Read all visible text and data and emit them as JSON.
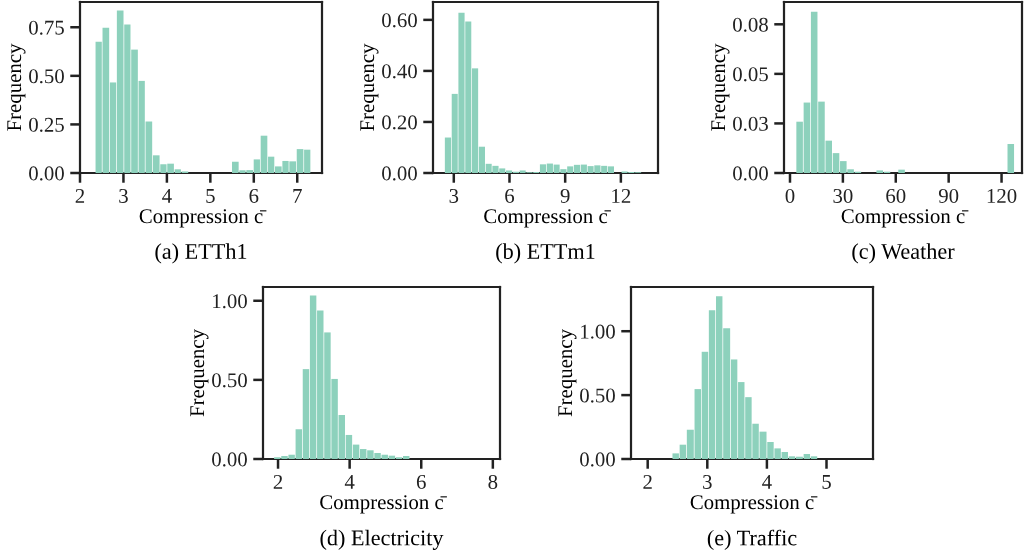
{
  "chart_data": [
    {
      "type": "histogram",
      "title": "(a) ETTh1",
      "xlabel": "Compression c̄",
      "ylabel": "Frequency",
      "color": "#8dd1bc",
      "bins": [
        2.35,
        2.51,
        2.68,
        2.84,
        3.01,
        3.17,
        3.34,
        3.5,
        3.67,
        3.84,
        4.0,
        4.17,
        4.33,
        4.5,
        4.66,
        4.83,
        4.99,
        5.16,
        5.32,
        5.49,
        5.66,
        5.82,
        5.99,
        6.15,
        6.32,
        6.48,
        6.65,
        6.81,
        6.98,
        7.15,
        7.31
      ],
      "values": [
        0.675,
        0.747,
        0.466,
        0.836,
        0.764,
        0.635,
        0.474,
        0.265,
        0.091,
        0.045,
        0.048,
        0.019,
        0.008,
        0,
        0,
        0,
        0,
        0,
        0,
        0.058,
        0.014,
        0.015,
        0.07,
        0.192,
        0.084,
        0.034,
        0.062,
        0.06,
        0.123,
        0.12
      ],
      "xlim": [
        2.0,
        7.57
      ],
      "ylim": [
        0,
        0.88
      ],
      "xticks": [
        2,
        3,
        4,
        5,
        6,
        7
      ],
      "yticks": [
        {
          "value": 0,
          "label": "0.00"
        },
        {
          "value": 0.25,
          "label": "0.25"
        },
        {
          "value": 0.5,
          "label": "0.50"
        },
        {
          "value": 0.75,
          "label": "0.75"
        }
      ],
      "grid": false
    },
    {
      "type": "histogram",
      "title": "(b) ETTm1",
      "xlabel": "Compression c̄",
      "ylabel": "Frequency",
      "color": "#8dd1bc",
      "bins": [
        2.5,
        2.87,
        3.23,
        3.6,
        3.96,
        4.33,
        4.7,
        5.06,
        5.43,
        5.79,
        6.16,
        6.53,
        6.89,
        7.26,
        7.62,
        7.99,
        8.36,
        8.72,
        9.09,
        9.45,
        9.82,
        10.19,
        10.55,
        10.92,
        11.28,
        11.65,
        12.02,
        12.38,
        12.75,
        13.11,
        13.48
      ],
      "values": [
        0.139,
        0.31,
        0.628,
        0.594,
        0.41,
        0.103,
        0.036,
        0.028,
        0.018,
        0.01,
        0.005,
        0.01,
        0.003,
        0.004,
        0.034,
        0.037,
        0.033,
        0.015,
        0.026,
        0.032,
        0.033,
        0.027,
        0.03,
        0.028,
        0.026,
        0,
        0.006,
        0.004,
        0.003,
        0
      ],
      "xlim": [
        1.88,
        14.0
      ],
      "ylim": [
        0,
        0.67
      ],
      "xticks": [
        3,
        6,
        9,
        12
      ],
      "yticks": [
        {
          "value": 0,
          "label": "0.00"
        },
        {
          "value": 0.2,
          "label": "0.20"
        },
        {
          "value": 0.4,
          "label": "0.40"
        },
        {
          "value": 0.6,
          "label": "0.60"
        }
      ],
      "grid": false
    },
    {
      "type": "histogram",
      "title": "(c) Weather",
      "xlabel": "Compression c̄",
      "ylabel": "Frequency",
      "color": "#8dd1bc",
      "bins": [
        3.4,
        7.53,
        11.66,
        15.79,
        19.92,
        24.05,
        28.18,
        32.31,
        36.44,
        40.57,
        44.7,
        48.83,
        52.96,
        57.09,
        61.22,
        65.35,
        69.48,
        73.61,
        77.74,
        81.87,
        86.0,
        90.13,
        94.26,
        98.39,
        102.52,
        106.65,
        110.78,
        114.91,
        119.04,
        123.17,
        127.3
      ],
      "values": [
        0.0276,
        0.0379,
        0.0868,
        0.0384,
        0.0174,
        0.0107,
        0.0064,
        0.002,
        0.0007,
        0,
        0,
        0.0014,
        0.0007,
        0,
        0.0018,
        0,
        0,
        0,
        0,
        0,
        0,
        0,
        0,
        0,
        0,
        0,
        0,
        0,
        0,
        0.0156
      ],
      "xlim": [
        -3.4,
        131.6
      ],
      "ylim": [
        0,
        0.092
      ],
      "xticks": [
        0,
        30,
        60,
        90,
        120
      ],
      "yticks": [
        {
          "value": 0,
          "label": "0.00"
        },
        {
          "value": 0.02667,
          "label": "0.03"
        },
        {
          "value": 0.05333,
          "label": "0.05"
        },
        {
          "value": 0.08,
          "label": "0.08"
        }
      ],
      "grid": false
    },
    {
      "type": "histogram",
      "title": "(d) Electricity",
      "xlabel": "Compression c̄",
      "ylabel": "Frequency",
      "color": "#8dd1bc",
      "bins": [
        1.88,
        2.08,
        2.28,
        2.48,
        2.68,
        2.88,
        3.08,
        3.28,
        3.48,
        3.68,
        3.88,
        4.08,
        4.28,
        4.48,
        4.68,
        4.88,
        5.08,
        5.28,
        5.48,
        5.68,
        5.88,
        6.08,
        6.28,
        6.48,
        6.68,
        6.88,
        7.08,
        7.28,
        7.48,
        7.68,
        7.88
      ],
      "values": [
        0.011,
        0.019,
        0.027,
        0.188,
        0.568,
        1.034,
        0.939,
        0.8,
        0.506,
        0.278,
        0.152,
        0.091,
        0.063,
        0.055,
        0.038,
        0.027,
        0.021,
        0.011,
        0.019,
        0,
        0,
        0,
        0,
        0,
        0,
        0,
        0,
        0,
        0,
        0
      ],
      "xlim": [
        1.58,
        8.2
      ],
      "ylim": [
        0,
        1.087
      ],
      "xticks": [
        2,
        4,
        6,
        8
      ],
      "yticks": [
        {
          "value": 0,
          "label": "0.00"
        },
        {
          "value": 0.5,
          "label": "0.50"
        },
        {
          "value": 1.0,
          "label": "1.00"
        }
      ],
      "grid": false
    },
    {
      "type": "histogram",
      "title": "(e) Traffic",
      "xlabel": "Compression c̄",
      "ylabel": "Frequency",
      "color": "#8dd1bc",
      "bins": [
        2.41,
        2.53,
        2.65,
        2.78,
        2.9,
        3.02,
        3.14,
        3.26,
        3.39,
        3.51,
        3.63,
        3.75,
        3.87,
        4.0,
        4.12,
        4.24,
        4.36,
        4.48,
        4.61,
        4.73,
        4.85
      ],
      "values": [
        0.044,
        0.112,
        0.229,
        0.547,
        0.839,
        1.164,
        1.273,
        1.023,
        0.779,
        0.602,
        0.484,
        0.276,
        0.214,
        0.133,
        0.083,
        0.055,
        0.021,
        0.018,
        0.039,
        0.021
      ],
      "xlim": [
        1.72,
        5.78
      ],
      "ylim": [
        0,
        1.346
      ],
      "xticks": [
        2,
        3,
        4,
        5
      ],
      "yticks": [
        {
          "value": 0,
          "label": "0.00"
        },
        {
          "value": 0.5,
          "label": "0.50"
        },
        {
          "value": 1.0,
          "label": "1.00"
        }
      ],
      "grid": false
    }
  ]
}
